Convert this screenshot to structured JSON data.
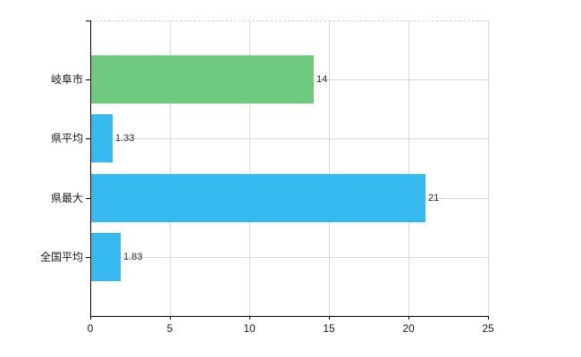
{
  "chart_data": {
    "type": "bar",
    "orientation": "horizontal",
    "title": "",
    "xlabel": "",
    "ylabel": "",
    "categories": [
      "岐阜市",
      "県平均",
      "県最大",
      "全国平均"
    ],
    "values": [
      14,
      1.33,
      21,
      1.83
    ],
    "value_labels": [
      "14",
      "1.33",
      "21",
      "1.83"
    ],
    "bar_colors": [
      "#6ecb7d",
      "#35b9ee",
      "#35b9ee",
      "#35b9ee"
    ],
    "xlim": [
      0,
      25
    ],
    "x_ticks": [
      0,
      5,
      10,
      15,
      20,
      25
    ],
    "x_tick_labels": [
      "0",
      "5",
      "10",
      "15",
      "20",
      "25"
    ],
    "grid": true,
    "legend": false,
    "colors": {
      "grid": "#d9d9d9",
      "plot_border_dashed": "#d0d0d0",
      "axis": "#000000",
      "text": "#1a1a1a",
      "value_text": "#2b2b2b",
      "background": "#ffffff"
    }
  }
}
